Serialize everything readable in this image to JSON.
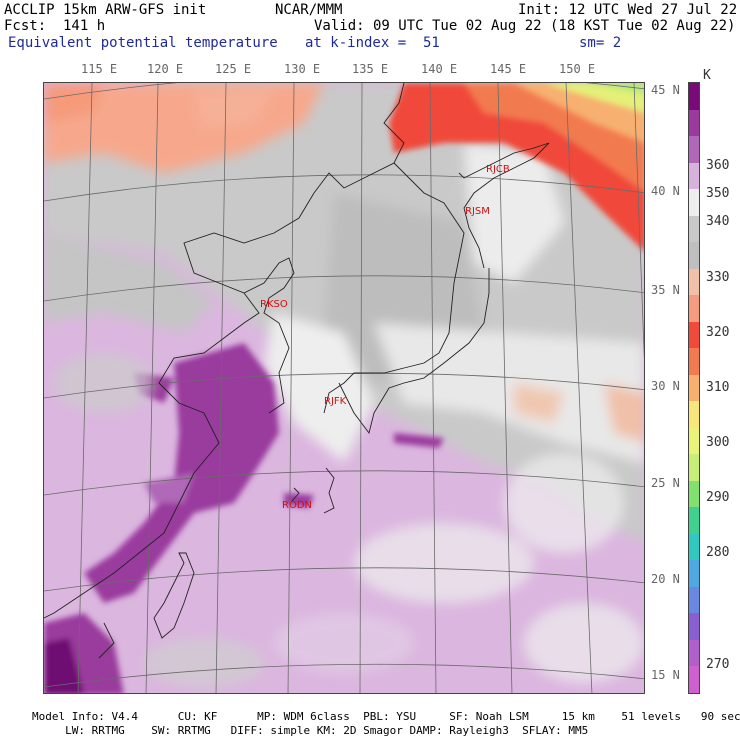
{
  "header": {
    "model": "ACCLIP 15km ARW-GFS init",
    "org": "NCAR/MMM",
    "init": "Init: 12 UTC Wed 27 Jul 22",
    "fcst": "Fcst:  141 h",
    "valid": "Valid: 09 UTC Tue 02 Aug 22 (18 KST Tue 02 Aug 22)",
    "field": "Equivalent potential temperature",
    "level": "at k-index =  51",
    "smooth": "sm= 2"
  },
  "axes": {
    "lon_labels": [
      "115 E",
      "120 E",
      "125 E",
      "130 E",
      "135 E",
      "140 E",
      "145 E",
      "150 E"
    ],
    "lat_labels": [
      "45 N",
      "40 N",
      "35 N",
      "30 N",
      "25 N",
      "20 N",
      "15 N"
    ]
  },
  "stations": [
    "RJCB",
    "RJSM",
    "RKSO",
    "RJFK",
    "RODN"
  ],
  "legend": {
    "unit": "K",
    "labels": [
      "360",
      "350",
      "340",
      "330",
      "320",
      "310",
      "300",
      "290",
      "280",
      "270"
    ],
    "colors": [
      "#7a0a7a",
      "#9a3a9e",
      "#b067b8",
      "#d6b2dc",
      "#eeeeee",
      "#c8c8c8",
      "#bfbfbf",
      "#f0c0a8",
      "#f59c80",
      "#f04a3a",
      "#f27a50",
      "#f7b070",
      "#f7e77a",
      "#e9f37a",
      "#c6ee78",
      "#80e070",
      "#40d090",
      "#30c8c0",
      "#50a8e0",
      "#6a88e0",
      "#8a60d0",
      "#b060c8",
      "#d060d0"
    ]
  },
  "footer": {
    "line1": "Model Info: V4.4      CU: KF      MP: WDM 6class  PBL: YSU     SF: Noah LSM     15 km    51 levels   90 sec",
    "line2": "     LW: RRTMG    SW: RRTMG   DIFF: simple KM: 2D Smagor DAMP: Rayleigh3  SFLAY: MM5"
  }
}
